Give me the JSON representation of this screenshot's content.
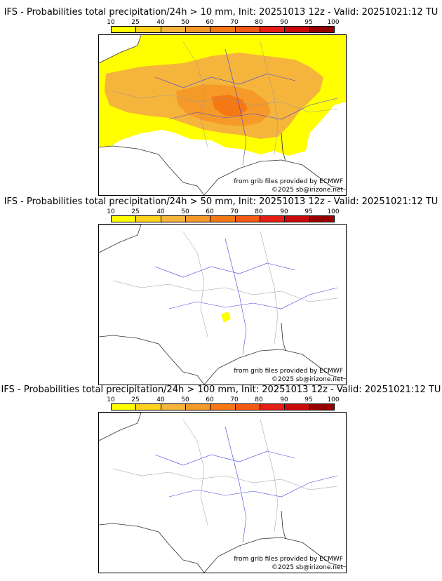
{
  "colorbar": {
    "ticks": [
      "10",
      "25",
      "40",
      "50",
      "60",
      "70",
      "80",
      "90",
      "95",
      "100"
    ],
    "colors": [
      "#ffff00",
      "#ffd21e",
      "#f5b43c",
      "#f59a28",
      "#f57814",
      "#f55a14",
      "#e61e14",
      "#c80a0a",
      "#960000",
      "#640000"
    ]
  },
  "credits": {
    "grib": "from grib files provided by ECMWF",
    "copyright": "©2025 sb@irizone.net"
  },
  "panels": [
    {
      "title": "IFS - Probabilities total precipitation/24h > 10 mm, Init: 20251013 12z - Valid: 20251021:12 TU",
      "threshold_mm": 10
    },
    {
      "title": "IFS - Probabilities total precipitation/24h > 50 mm, Init: 20251013 12z - Valid: 20251021:12 TU",
      "threshold_mm": 50
    },
    {
      "title": "IFS - Probabilities total precipitation/24h > 100 mm, Init: 20251013 12z - Valid: 20251021:12 TU",
      "threshold_mm": 100
    }
  ]
}
